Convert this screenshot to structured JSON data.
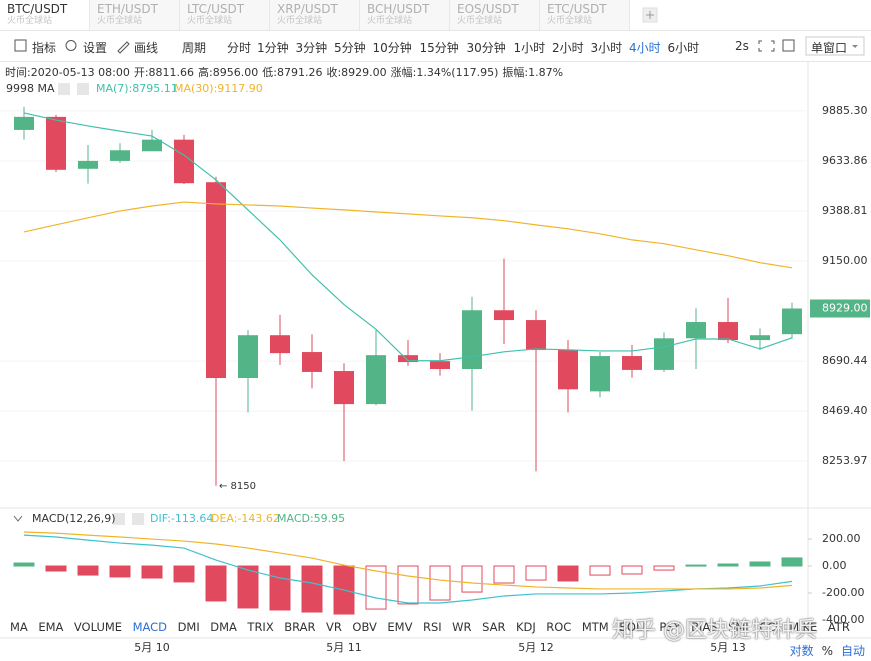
{
  "tabs": [
    {
      "symbol": "BTC/USDT",
      "exchange": "火币全球站"
    },
    {
      "symbol": "ETH/USDT",
      "exchange": "火币全球站"
    },
    {
      "symbol": "LTC/USDT",
      "exchange": "火币全球站"
    },
    {
      "symbol": "XRP/USDT",
      "exchange": "火币全球站"
    },
    {
      "symbol": "BCH/USDT",
      "exchange": "火币全球站"
    },
    {
      "symbol": "EOS/USDT",
      "exchange": "火币全球站"
    },
    {
      "symbol": "ETC/USDT",
      "exchange": "火币全球站"
    }
  ],
  "toolbar": {
    "tools": [
      "指标",
      "设置",
      "画线"
    ],
    "period_label": "周期",
    "periods": [
      "分时",
      "1分钟",
      "3分钟",
      "5分钟",
      "10分钟",
      "15分钟",
      "30分钟",
      "1小时",
      "2小时",
      "3小时",
      "4小时",
      "6小时"
    ],
    "active_period": 10,
    "refresh": "2s",
    "window": "单窗口"
  },
  "info": [
    "时间:2020-05-13 08:00",
    "开:8811.66",
    "高:8956.00",
    "低:8791.26",
    "收:8929.00",
    "涨幅:1.34%(117.95)",
    "振幅:1.87%"
  ],
  "chart_data": [
    {
      "type": "candlestick",
      "legend_title": "9998 MA",
      "categories": [
        null,
        null,
        null,
        null,
        "5月 10",
        null,
        null,
        null,
        null,
        null,
        "5月 11",
        null,
        null,
        null,
        null,
        null,
        "5月 12",
        null,
        null,
        null,
        null,
        null,
        "5月 13",
        null,
        null
      ],
      "open": [
        9789,
        9855,
        9595,
        9634,
        9682,
        9740,
        9529,
        8615,
        8807,
        8731,
        8646,
        8500,
        8717,
        8690,
        8655,
        8921,
        8876,
        8740,
        8556,
        8713,
        8651,
        8793,
        8867,
        8785,
        8811.66
      ],
      "high": [
        9906,
        9865,
        9713,
        9722,
        9789,
        9764,
        9556,
        8830,
        8900,
        8811,
        8681,
        8830,
        8785,
        8726,
        8983,
        9162,
        8921,
        8785,
        8731,
        8763,
        8820,
        8930,
        8978,
        8838,
        8956
      ],
      "low": [
        9740,
        9580,
        9522,
        9624,
        9682,
        9520,
        8150,
        8464,
        8673,
        8569,
        8254,
        8495,
        8669,
        8625,
        8472,
        8767,
        8211,
        8464,
        8530,
        8617,
        8642,
        8655,
        8771,
        8740,
        8791.26
      ],
      "close": [
        9855,
        9590,
        9634,
        9687,
        9740,
        9524,
        8615,
        8807,
        8726,
        8642,
        8500,
        8717,
        8686,
        8655,
        8921,
        8876,
        8740,
        8565,
        8713,
        8651,
        8793,
        8867,
        8785,
        8807,
        8929
      ],
      "up_color": "#53b487",
      "down_color": "#e14a5e",
      "series": [
        {
          "name": "MA(7):8795.11",
          "color": "#3fc1ab",
          "values": [
            9875,
            9839,
            9809,
            9783,
            9758,
            9663,
            9540,
            9394,
            9250,
            9085,
            8947,
            8834,
            8692,
            8692,
            8710,
            8732,
            8745,
            8741,
            8736,
            8736,
            8754,
            8790,
            8790,
            8745,
            8795.11
          ]
        },
        {
          "name": "MA(30):9117.90",
          "color": "#f0b42a",
          "values": [
            9288,
            9322,
            9356,
            9389,
            9413,
            9432,
            9423,
            9418,
            9413,
            9403,
            9394,
            9384,
            9375,
            9365,
            9356,
            9342,
            9322,
            9303,
            9279,
            9250,
            9232,
            9203,
            9175,
            9142,
            9117.9
          ]
        }
      ],
      "yscale": "log",
      "ylim": [
        8078,
        9941
      ],
      "yticks": [
        {
          "value": 9885.3,
          "label": "9885.30"
        },
        9633.86,
        9388.81,
        {
          "value": 9150,
          "label": "9150.00"
        },
        8690.44,
        {
          "value": 8469.4,
          "label": "8469.40"
        },
        8253.97
      ],
      "price_tag": {
        "value": 8929,
        "label": "8929.00"
      },
      "annotation": {
        "value": 8150,
        "label": "← 8150"
      },
      "grid": true
    },
    {
      "type": "macd",
      "title": "MACD(12,26,9)",
      "histogram_name": "MACD:59.95",
      "values": [
        22,
        -37,
        -67,
        -81,
        -89,
        -118,
        -259,
        -311,
        -326,
        -341,
        -356,
        -319,
        -281,
        -252,
        -193,
        -126,
        -104,
        -111,
        -67,
        -59,
        -30,
        7,
        15,
        30,
        59.95
      ],
      "up_color": "#53b487",
      "down_color": "#e14a5e",
      "series": [
        {
          "name": "DIF:-113.64",
          "color": "#3fc1d0",
          "values": [
            229,
            215,
            192,
            170,
            155,
            133,
            44,
            -30,
            -89,
            -126,
            -178,
            -237,
            -274,
            -274,
            -252,
            -222,
            -207,
            -207,
            -207,
            -200,
            -185,
            -170,
            -163,
            -148,
            -113.64
          ]
        },
        {
          "name": "DEA:-143.62",
          "color": "#f0b42a",
          "values": [
            252,
            244,
            229,
            215,
            200,
            185,
            163,
            133,
            96,
            59,
            7,
            -37,
            -74,
            -104,
            -126,
            -141,
            -155,
            -163,
            -170,
            -170,
            -170,
            -170,
            -170,
            -163,
            -143.62
          ]
        }
      ],
      "ylim": [
        -415,
        267
      ],
      "yticks": [
        {
          "value": 200,
          "label": "200.00"
        },
        {
          "value": 0,
          "label": "0.00"
        },
        {
          "value": -200,
          "label": "-200.00"
        },
        {
          "value": -400,
          "label": "-400.00"
        }
      ]
    }
  ],
  "indicators": {
    "items": [
      "MA",
      "EMA",
      "VOLUME",
      "MACD",
      "DMI",
      "DMA",
      "TRIX",
      "BRAR",
      "VR",
      "OBV",
      "EMV",
      "RSI",
      "WR",
      "SAR",
      "KDJ",
      "ROC",
      "MTM",
      "BOLL",
      "PSY",
      "BIAS",
      "SMI",
      "CCI",
      "MIKE",
      "ATR"
    ],
    "active": 3
  },
  "watermark": "知乎 @区块链特种兵",
  "footer": {
    "log": "对数",
    "percent": "%",
    "auto": "自动"
  }
}
